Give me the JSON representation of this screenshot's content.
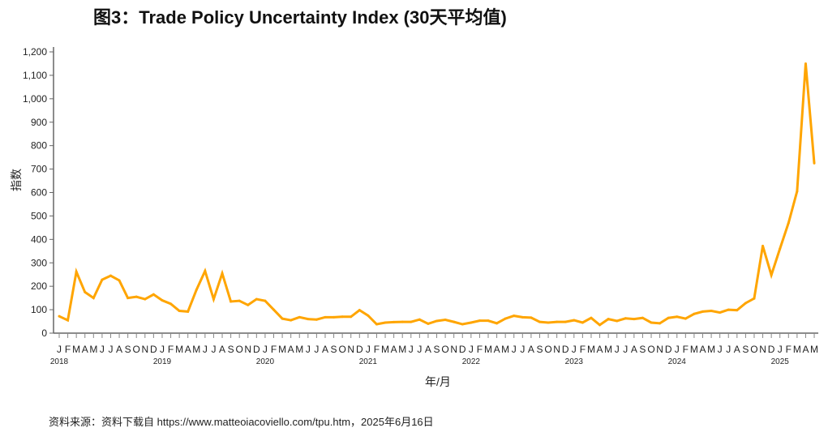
{
  "chart_data": {
    "type": "line",
    "title": "图3：Trade Policy Uncertainty Index (30天平均值)",
    "xlabel": "年/月",
    "ylabel": "指数",
    "ylim": [
      0,
      1200
    ],
    "yticks": [
      "0",
      "100",
      "200",
      "300",
      "400",
      "500",
      "600",
      "700",
      "800",
      "900",
      "1,000",
      "1,100",
      "1,200"
    ],
    "month_letters": [
      "J",
      "F",
      "M",
      "A",
      "M",
      "J",
      "J",
      "A",
      "S",
      "O",
      "N",
      "D"
    ],
    "years": [
      "2018",
      "2019",
      "2020",
      "2021",
      "2022",
      "2023",
      "2024",
      "2025"
    ],
    "start": "2018-01",
    "end": "2025-05",
    "series": [
      {
        "name": "Trade Policy Uncertainty Index",
        "color": "#FFA500",
        "values": [
          72,
          55,
          262,
          175,
          150,
          228,
          245,
          225,
          150,
          155,
          145,
          165,
          140,
          125,
          95,
          92,
          185,
          265,
          145,
          255,
          135,
          138,
          120,
          145,
          138,
          100,
          62,
          55,
          68,
          60,
          58,
          68,
          68,
          70,
          70,
          98,
          75,
          38,
          45,
          47,
          48,
          48,
          58,
          40,
          52,
          57,
          48,
          38,
          45,
          53,
          53,
          42,
          62,
          74,
          68,
          66,
          48,
          45,
          48,
          48,
          55,
          45,
          65,
          35,
          60,
          52,
          63,
          60,
          65,
          45,
          42,
          65,
          70,
          62,
          82,
          92,
          95,
          88,
          100,
          98,
          128,
          148,
          372,
          248,
          360,
          470,
          605,
          1150,
          725
        ]
      }
    ]
  },
  "source": "资料来源：资料下载自 https://www.matteoiacoviello.com/tpu.htm，2025年6月16日"
}
